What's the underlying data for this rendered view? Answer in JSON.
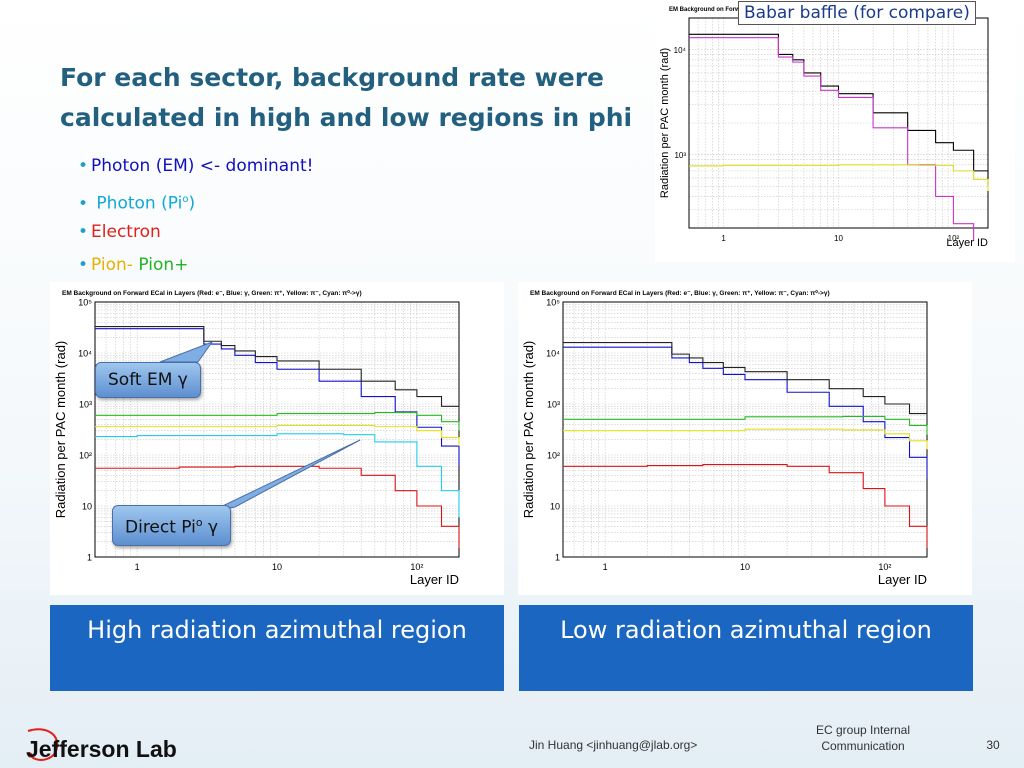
{
  "slide": {
    "title_line1": "For each sector, background rate were",
    "title_line2": "calculated in high and low regions in phi",
    "bullets": [
      {
        "parts": [
          {
            "text": "Photon (EM) <- dominant!",
            "color": "#1010c0"
          }
        ]
      },
      {
        "parts": [
          {
            "text": " Photon (Pi",
            "color": "#10a8d8"
          },
          {
            "text": "o",
            "color": "#10a8d8",
            "sup": true
          },
          {
            "text": ")",
            "color": "#10a8d8"
          }
        ]
      },
      {
        "parts": [
          {
            "text": "Electron",
            "color": "#e0201a"
          }
        ]
      },
      {
        "parts": [
          {
            "text": "Pion- ",
            "color": "#e8b000"
          },
          {
            "text": "Pion+",
            "color": "#22b422"
          }
        ]
      }
    ],
    "compare_label": "Babar baffle (for compare)",
    "callout_soft": "Soft EM γ",
    "callout_direct_a": "Direct Pi",
    "callout_direct_sup": "o",
    "callout_direct_b": " γ",
    "caption_left": "High radiation azimuthal region",
    "caption_right": "Low radiation azimuthal region",
    "footer_author": "Jin Huang <jinhuang@jlab.org>",
    "footer_group": "EC group Internal Communication",
    "page_number": "30",
    "logo_text": "Jefferson Lab"
  },
  "chart_data": [
    {
      "type": "line",
      "panel": "compare",
      "title": "EM Background on Forward",
      "xlabel": "Layer ID",
      "ylabel": "Radiation per PAC month (rad)",
      "xscale": "log",
      "yscale": "log",
      "xlim": [
        0.5,
        200
      ],
      "ylim": [
        200,
        20000
      ],
      "xticks": [
        "1",
        "10",
        "10²"
      ],
      "yticks": [
        "10³",
        "10⁴"
      ],
      "grid": true,
      "series": [
        {
          "color": "#000000",
          "x": [
            0.5,
            1,
            2,
            3,
            4,
            5,
            7,
            10,
            20,
            40,
            70,
            100,
            150,
            200
          ],
          "y": [
            14000,
            14000,
            14000,
            9000,
            8000,
            6000,
            4500,
            3800,
            2500,
            1700,
            1300,
            1100,
            700,
            500
          ]
        },
        {
          "color": "#cc33cc",
          "x": [
            0.5,
            1,
            2,
            3,
            4,
            5,
            7,
            10,
            20,
            40,
            70,
            100,
            150
          ],
          "y": [
            13000,
            13000,
            13000,
            8500,
            7600,
            5600,
            4100,
            3500,
            1800,
            800,
            400,
            220,
            150
          ]
        },
        {
          "color": "#dddd22",
          "x": [
            0.5,
            1,
            10,
            50,
            100,
            150,
            200
          ],
          "y": [
            780,
            790,
            800,
            790,
            700,
            580,
            450
          ]
        }
      ]
    },
    {
      "type": "line",
      "panel": "high",
      "title": "EM Background on Forward ECal in Layers (Red: e⁻, Blue: γ, Green: π⁺, Yellow: π⁻, Cyan: π⁰->γ)",
      "xlabel": "Layer ID",
      "ylabel": "Radiation per PAC month (rad)",
      "xscale": "log",
      "yscale": "log",
      "xlim": [
        0.5,
        200
      ],
      "ylim": [
        1,
        100000
      ],
      "xticks": [
        "1",
        "10",
        "10²"
      ],
      "yticks": [
        "1",
        "10",
        "10²",
        "10³",
        "10⁴",
        "10⁵"
      ],
      "grid": true,
      "series": [
        {
          "name": "e⁻",
          "color": "#dd1111",
          "x": [
            0.5,
            1,
            2,
            5,
            10,
            20,
            40,
            70,
            100,
            150,
            200
          ],
          "y": [
            55,
            55,
            58,
            60,
            60,
            55,
            40,
            20,
            10,
            4,
            1.5
          ]
        },
        {
          "name": "γ",
          "color": "#1010cc",
          "x": [
            0.5,
            1,
            2,
            3,
            4,
            5,
            7,
            10,
            20,
            40,
            70,
            100,
            150,
            200
          ],
          "y": [
            30000,
            30000,
            30000,
            15000,
            12000,
            9000,
            6500,
            4800,
            2800,
            1400,
            700,
            350,
            150,
            60
          ]
        },
        {
          "name": "π⁺",
          "color": "#22bb22",
          "x": [
            0.5,
            1,
            10,
            50,
            100,
            150,
            200
          ],
          "y": [
            600,
            600,
            650,
            680,
            600,
            450,
            300
          ]
        },
        {
          "name": "π⁻",
          "color": "#e0e020",
          "x": [
            0.5,
            1,
            10,
            50,
            100,
            150,
            200
          ],
          "y": [
            360,
            360,
            380,
            360,
            300,
            220,
            150
          ]
        },
        {
          "name": "π⁰->γ",
          "color": "#22ccee",
          "x": [
            0.5,
            1,
            10,
            30,
            50,
            100,
            150,
            200
          ],
          "y": [
            230,
            240,
            260,
            250,
            180,
            60,
            20,
            6
          ]
        },
        {
          "color": "#222222",
          "x": [
            0.5,
            1,
            2,
            3,
            4,
            5,
            7,
            10,
            20,
            40,
            70,
            100,
            150,
            200
          ],
          "y": [
            33000,
            33000,
            33000,
            17000,
            14000,
            11000,
            8500,
            7000,
            4800,
            2800,
            1900,
            1400,
            900,
            550
          ]
        }
      ]
    },
    {
      "type": "line",
      "panel": "low",
      "title": "EM Background on Forward ECal in Layers (Red: e⁻, Blue: γ, Green: π⁺, Yellow: π⁻, Cyan: π⁰->γ)",
      "xlabel": "Layer ID",
      "ylabel": "Radiation per PAC month (rad)",
      "xscale": "log",
      "yscale": "log",
      "xlim": [
        0.5,
        200
      ],
      "ylim": [
        1,
        100000
      ],
      "xticks": [
        "1",
        "10",
        "10²"
      ],
      "yticks": [
        "1",
        "10",
        "10²",
        "10³",
        "10⁴",
        "10⁵"
      ],
      "grid": true,
      "series": [
        {
          "name": "e⁻",
          "color": "#dd1111",
          "x": [
            0.5,
            1,
            2,
            5,
            10,
            20,
            40,
            70,
            100,
            150,
            200
          ],
          "y": [
            60,
            60,
            62,
            65,
            65,
            60,
            45,
            22,
            10,
            4,
            1.5
          ]
        },
        {
          "name": "γ",
          "color": "#1010cc",
          "x": [
            0.5,
            1,
            2,
            3,
            4,
            5,
            7,
            10,
            20,
            40,
            70,
            100,
            150,
            200
          ],
          "y": [
            13000,
            13000,
            13000,
            8000,
            6500,
            5000,
            3800,
            3000,
            1700,
            900,
            450,
            220,
            90,
            35
          ]
        },
        {
          "name": "π⁺",
          "color": "#22bb22",
          "x": [
            0.5,
            1,
            10,
            50,
            100,
            150,
            200
          ],
          "y": [
            500,
            500,
            560,
            570,
            500,
            380,
            250
          ]
        },
        {
          "name": "π⁻",
          "color": "#e0e020",
          "x": [
            0.5,
            1,
            10,
            50,
            100,
            150,
            200
          ],
          "y": [
            300,
            300,
            320,
            310,
            260,
            190,
            130
          ]
        },
        {
          "color": "#222222",
          "x": [
            0.5,
            1,
            2,
            3,
            4,
            5,
            7,
            10,
            20,
            40,
            70,
            100,
            150,
            200
          ],
          "y": [
            16000,
            16000,
            16000,
            9500,
            8000,
            6500,
            5200,
            4300,
            3000,
            2000,
            1400,
            1000,
            650,
            400
          ]
        }
      ]
    }
  ]
}
